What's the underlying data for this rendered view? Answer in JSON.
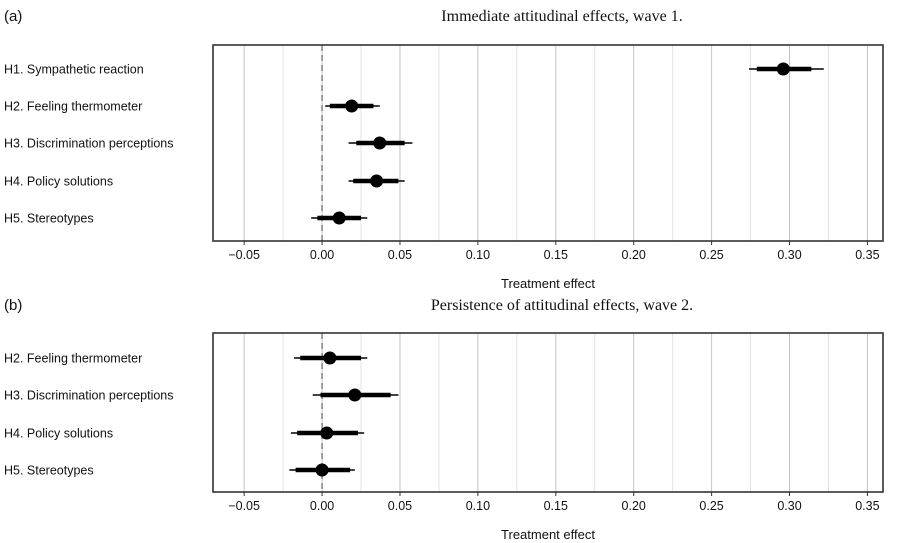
{
  "chart_data": [
    {
      "type": "scatter",
      "panel_label": "(a)",
      "title": "Immediate attitudinal effects, wave 1.",
      "xlabel": "Treatment effect",
      "xlim": [
        -0.07,
        0.36
      ],
      "xticks": [
        "−0.05",
        "0.00",
        "0.05",
        "0.10",
        "0.15",
        "0.20",
        "0.25",
        "0.30",
        "0.35"
      ],
      "xtick_values": [
        -0.05,
        0,
        0.05,
        0.1,
        0.15,
        0.2,
        0.25,
        0.3,
        0.35
      ],
      "reference_line": 0,
      "grid": "vertical",
      "categories": [
        "H1. Sympathetic reaction",
        "H2. Feeling thermometer",
        "H3. Discrimination perceptions",
        "H4. Policy solutions",
        "H5. Stereotypes"
      ],
      "estimates": [
        0.296,
        0.019,
        0.037,
        0.035,
        0.011
      ],
      "ci90": [
        [
          0.279,
          0.314
        ],
        [
          0.005,
          0.033
        ],
        [
          0.022,
          0.053
        ],
        [
          0.02,
          0.049
        ],
        [
          -0.003,
          0.025
        ]
      ],
      "ci95": [
        [
          0.274,
          0.322
        ],
        [
          0.002,
          0.037
        ],
        [
          0.017,
          0.058
        ],
        [
          0.017,
          0.053
        ],
        [
          -0.007,
          0.029
        ]
      ]
    },
    {
      "type": "scatter",
      "panel_label": "(b)",
      "title": "Persistence of attitudinal effects, wave 2.",
      "xlabel": "Treatment effect",
      "xlim": [
        -0.07,
        0.36
      ],
      "xticks": [
        "−0.05",
        "0.00",
        "0.05",
        "0.10",
        "0.15",
        "0.20",
        "0.25",
        "0.30",
        "0.35"
      ],
      "xtick_values": [
        -0.05,
        0,
        0.05,
        0.1,
        0.15,
        0.2,
        0.25,
        0.3,
        0.35
      ],
      "reference_line": 0,
      "grid": "vertical",
      "categories": [
        "H2. Feeling thermometer",
        "H3. Discrimination perceptions",
        "H4. Policy solutions",
        "H5. Stereotypes"
      ],
      "estimates": [
        0.005,
        0.021,
        0.003,
        0.0
      ],
      "ci90": [
        [
          -0.014,
          0.025
        ],
        [
          -0.001,
          0.044
        ],
        [
          -0.016,
          0.023
        ],
        [
          -0.017,
          0.018
        ]
      ],
      "ci95": [
        [
          -0.018,
          0.029
        ],
        [
          -0.006,
          0.049
        ],
        [
          -0.02,
          0.027
        ],
        [
          -0.021,
          0.021
        ]
      ]
    }
  ]
}
